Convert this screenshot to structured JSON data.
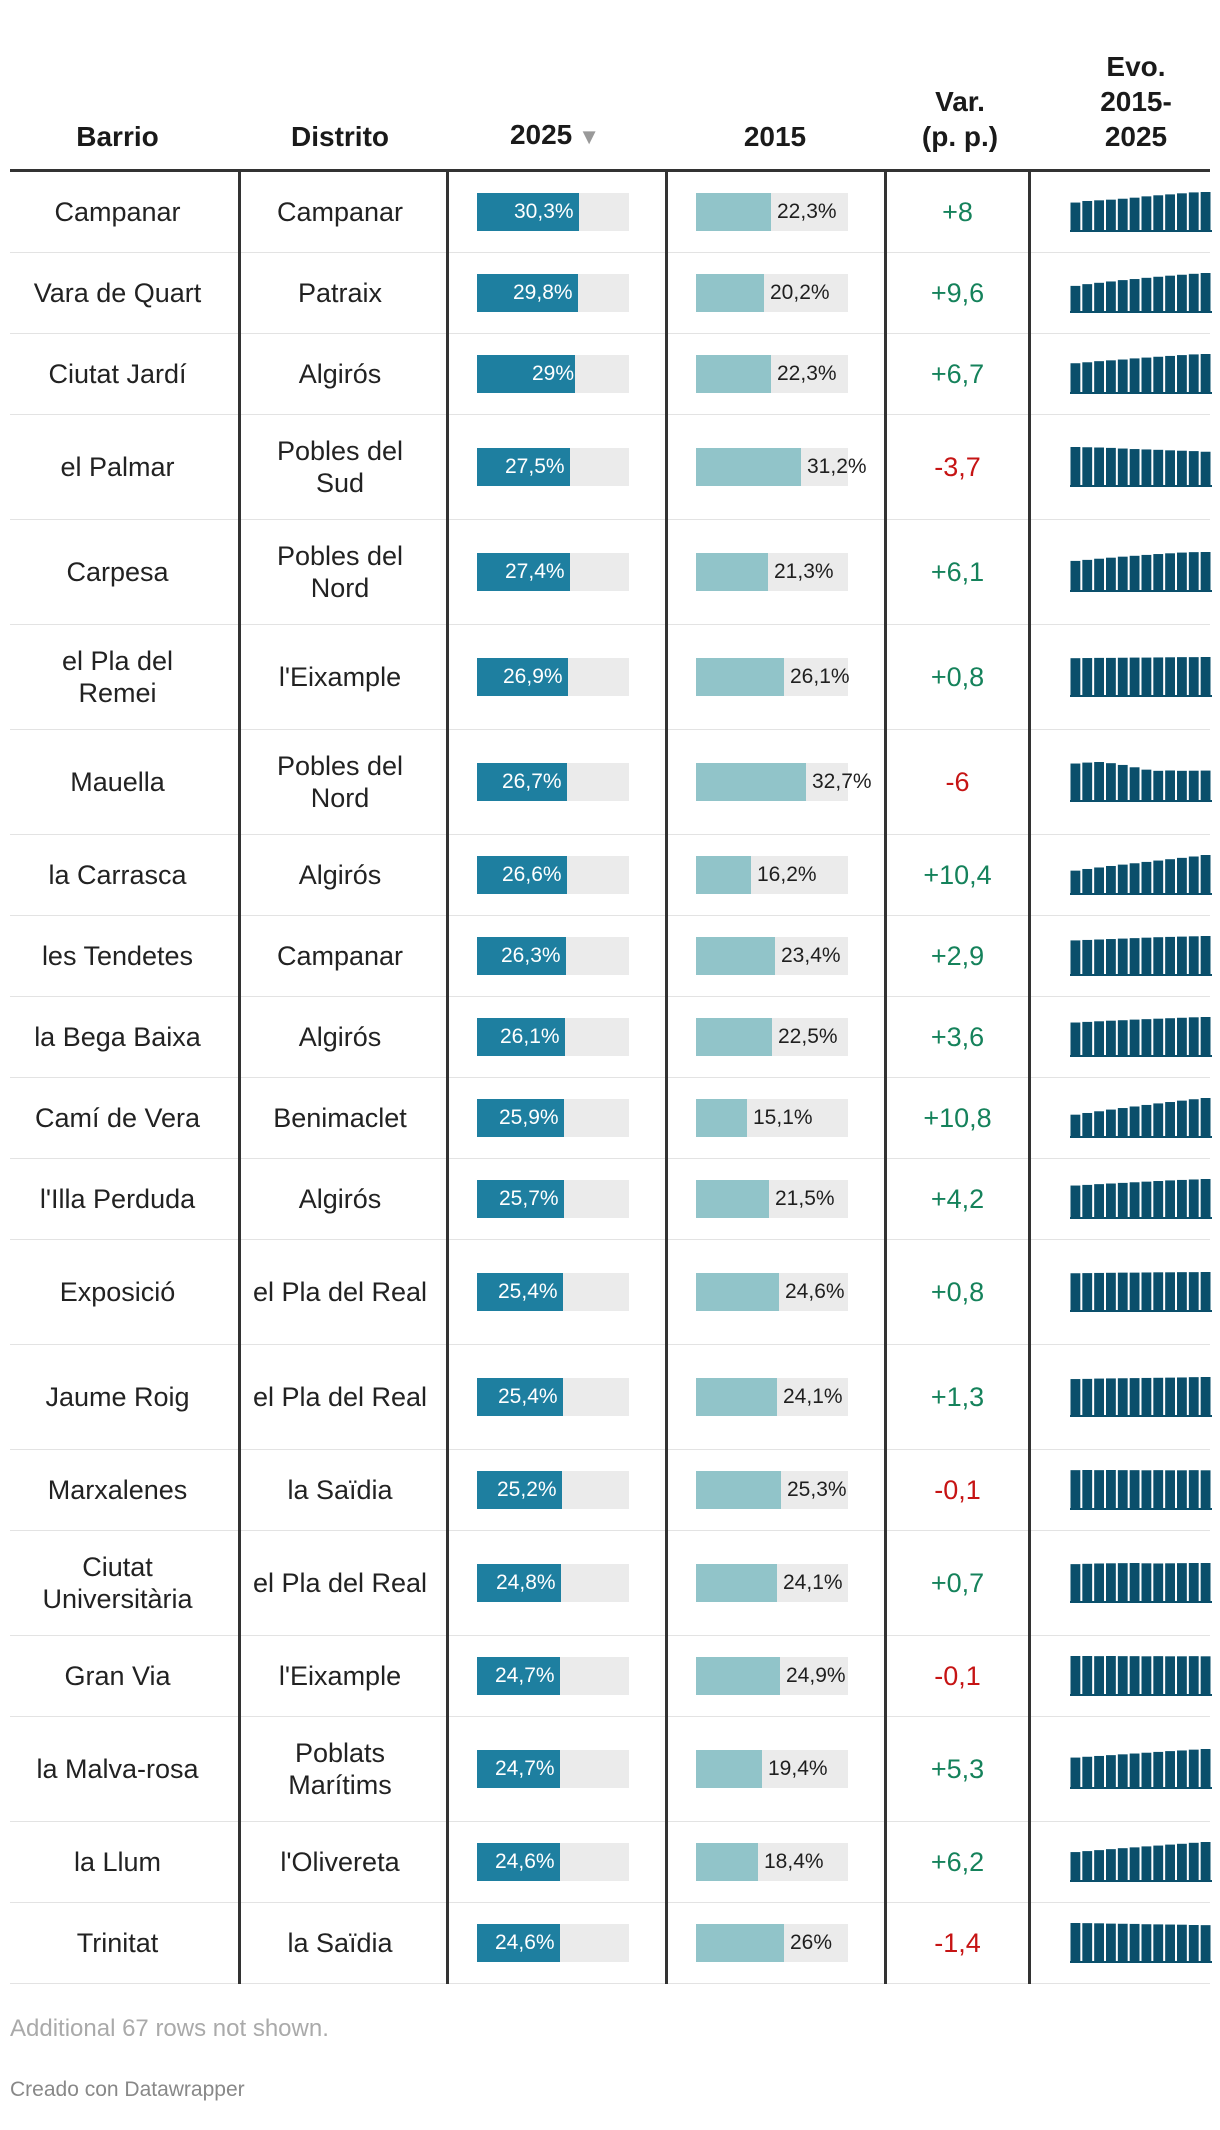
{
  "headers": {
    "barrio": "Barrio",
    "distrito": "Distrito",
    "y2025": "2025",
    "sort_indicator": "▼",
    "y2015": "2015",
    "var": "Var. (p. p.)",
    "evo": "Evo. 2015-2025"
  },
  "colors": {
    "bar_2025": "#1e7fa0",
    "bar_2015": "#91c4c9",
    "bar_bg": "#ebebeb",
    "positive": "#15825b",
    "negative": "#c61414",
    "spark": "#0a4f6b"
  },
  "chart_data": {
    "type": "table",
    "columns": [
      "Barrio",
      "Distrito",
      "2025",
      "2015",
      "Var. (p. p.)",
      "Evo. 2015-2025"
    ],
    "bar_domain": [
      0,
      45
    ],
    "rows": [
      {
        "barrio": "Campanar",
        "distrito": "Campanar",
        "v2025": 30.3,
        "v2025_label": "30,3%",
        "v2015": 22.3,
        "v2015_label": "22,3%",
        "var": "+8",
        "sign": "pos",
        "spark": [
          22.3,
          23.5,
          24.0,
          24.5,
          25.2,
          26.0,
          27.0,
          27.8,
          28.5,
          29.3,
          30.0,
          30.3
        ]
      },
      {
        "barrio": "Vara de Quart",
        "distrito": "Patraix",
        "v2025": 29.8,
        "v2025_label": "29,8%",
        "v2015": 20.2,
        "v2015_label": "20,2%",
        "var": "+9,6",
        "sign": "pos",
        "spark": [
          20.2,
          21.5,
          22.5,
          23.5,
          24.5,
          25.3,
          26.2,
          27.0,
          27.8,
          28.5,
          29.2,
          29.8
        ]
      },
      {
        "barrio": "Ciutat Jardí",
        "distrito": "Algirós",
        "v2025": 29,
        "v2025_label": "29%",
        "v2015": 22.3,
        "v2015_label": "22,3%",
        "var": "+6,7",
        "sign": "pos",
        "spark": [
          22.3,
          23.0,
          23.8,
          24.4,
          25.0,
          25.8,
          26.4,
          27.0,
          27.6,
          28.2,
          28.7,
          29.0
        ]
      },
      {
        "barrio": "el Palmar",
        "distrito": "Pobles del Sud",
        "v2025": 27.5,
        "v2025_label": "27,5%",
        "v2015": 31.2,
        "v2015_label": "31,2%",
        "var": "-3,7",
        "sign": "neg",
        "spark": [
          31.2,
          31.0,
          30.8,
          30.5,
          30.0,
          29.6,
          29.3,
          29.0,
          28.6,
          28.3,
          28.0,
          27.5
        ]
      },
      {
        "barrio": "Carpesa",
        "distrito": "Pobles del Nord",
        "v2025": 27.4,
        "v2025_label": "27,4%",
        "v2015": 21.3,
        "v2015_label": "21,3%",
        "var": "+6,1",
        "sign": "pos",
        "spark": [
          21.3,
          22.0,
          22.8,
          23.5,
          24.2,
          24.8,
          25.4,
          26.0,
          26.5,
          27.0,
          27.3,
          27.4
        ]
      },
      {
        "barrio": "el Pla del Remei",
        "distrito": "l'Eixample",
        "v2025": 26.9,
        "v2025_label": "26,9%",
        "v2015": 26.1,
        "v2015_label": "26,1%",
        "var": "+0,8",
        "sign": "pos",
        "spark": [
          26.1,
          26.2,
          26.3,
          26.3,
          26.4,
          26.5,
          26.5,
          26.6,
          26.7,
          26.8,
          26.8,
          26.9
        ]
      },
      {
        "barrio": "Mauella",
        "distrito": "Pobles del Nord",
        "v2025": 26.7,
        "v2025_label": "26,7%",
        "v2015": 32.7,
        "v2015_label": "32,7%",
        "var": "-6",
        "sign": "neg",
        "spark": [
          32.7,
          33.5,
          34.0,
          33.0,
          31.5,
          29.5,
          27.5,
          26.5,
          26.8,
          26.5,
          26.6,
          26.7
        ]
      },
      {
        "barrio": "la Carrasca",
        "distrito": "Algirós",
        "v2025": 26.6,
        "v2025_label": "26,6%",
        "v2015": 16.2,
        "v2015_label": "16,2%",
        "var": "+10,4",
        "sign": "pos",
        "spark": [
          16.2,
          17.3,
          18.3,
          19.3,
          20.2,
          21.1,
          22.0,
          22.9,
          23.8,
          24.7,
          25.6,
          26.6
        ]
      },
      {
        "barrio": "les Tendetes",
        "distrito": "Campanar",
        "v2025": 26.3,
        "v2025_label": "26,3%",
        "v2015": 23.4,
        "v2015_label": "23,4%",
        "var": "+2,9",
        "sign": "pos",
        "spark": [
          23.4,
          23.7,
          24.0,
          24.3,
          24.6,
          24.9,
          25.2,
          25.5,
          25.7,
          25.9,
          26.1,
          26.3
        ]
      },
      {
        "barrio": "la Bega Baixa",
        "distrito": "Algirós",
        "v2025": 26.1,
        "v2025_label": "26,1%",
        "v2015": 22.5,
        "v2015_label": "22,5%",
        "var": "+3,6",
        "sign": "pos",
        "spark": [
          22.5,
          22.9,
          23.3,
          23.7,
          24.0,
          24.4,
          24.7,
          25.0,
          25.3,
          25.6,
          25.9,
          26.1
        ]
      },
      {
        "barrio": "Camí de Vera",
        "distrito": "Benimaclet",
        "v2025": 25.9,
        "v2025_label": "25,9%",
        "v2015": 15.1,
        "v2015_label": "15,1%",
        "var": "+10,8",
        "sign": "pos",
        "spark": [
          15.1,
          16.2,
          17.3,
          18.4,
          19.4,
          20.4,
          21.4,
          22.4,
          23.3,
          24.2,
          25.1,
          25.9
        ]
      },
      {
        "barrio": "l'Illa Perduda",
        "distrito": "Algirós",
        "v2025": 25.7,
        "v2025_label": "25,7%",
        "v2015": 21.5,
        "v2015_label": "21,5%",
        "var": "+4,2",
        "sign": "pos",
        "spark": [
          21.5,
          21.9,
          22.4,
          22.8,
          23.2,
          23.6,
          24.0,
          24.4,
          24.8,
          25.1,
          25.4,
          25.7
        ]
      },
      {
        "barrio": "Exposició",
        "distrito": "el Pla del Real",
        "v2025": 25.4,
        "v2025_label": "25,4%",
        "v2015": 24.6,
        "v2015_label": "24,6%",
        "var": "+0,8",
        "sign": "pos",
        "spark": [
          24.6,
          24.7,
          24.8,
          24.9,
          25.0,
          25.0,
          25.1,
          25.2,
          25.2,
          25.3,
          25.3,
          25.4
        ]
      },
      {
        "barrio": "Jaume Roig",
        "distrito": "el Pla del Real",
        "v2025": 25.4,
        "v2025_label": "25,4%",
        "v2015": 24.1,
        "v2015_label": "24,1%",
        "var": "+1,3",
        "sign": "pos",
        "spark": [
          24.1,
          24.2,
          24.4,
          24.5,
          24.6,
          24.7,
          24.8,
          24.9,
          25.0,
          25.1,
          25.3,
          25.4
        ]
      },
      {
        "barrio": "Marxalenes",
        "distrito": "la Saïdia",
        "v2025": 25.2,
        "v2025_label": "25,2%",
        "v2015": 25.3,
        "v2015_label": "25,3%",
        "var": "-0,1",
        "sign": "neg",
        "spark": [
          25.3,
          25.4,
          25.3,
          25.4,
          25.3,
          25.3,
          25.2,
          25.3,
          25.2,
          25.2,
          25.3,
          25.2
        ]
      },
      {
        "barrio": "Ciutat Universitària",
        "distrito": "el Pla del Real",
        "v2025": 24.8,
        "v2025_label": "24,8%",
        "v2015": 24.1,
        "v2015_label": "24,1%",
        "var": "+0,7",
        "sign": "pos",
        "spark": [
          24.1,
          24.3,
          24.5,
          24.6,
          24.7,
          24.8,
          24.6,
          24.5,
          24.6,
          24.7,
          24.8,
          24.8
        ]
      },
      {
        "barrio": "Gran Via",
        "distrito": "l'Eixample",
        "v2025": 24.7,
        "v2025_label": "24,7%",
        "v2015": 24.9,
        "v2015_label": "24,9%",
        "var": "-0,1",
        "sign": "neg",
        "spark": [
          24.9,
          24.9,
          24.8,
          24.9,
          24.8,
          24.8,
          24.7,
          24.8,
          24.7,
          24.7,
          24.8,
          24.7
        ]
      },
      {
        "barrio": "la Malva-rosa",
        "distrito": "Poblats Marítims",
        "v2025": 24.7,
        "v2025_label": "24,7%",
        "v2015": 19.4,
        "v2015_label": "19,4%",
        "var": "+5,3",
        "sign": "pos",
        "spark": [
          19.4,
          19.9,
          20.4,
          20.9,
          21.4,
          21.9,
          22.4,
          22.9,
          23.4,
          23.8,
          24.3,
          24.7
        ]
      },
      {
        "barrio": "la Llum",
        "distrito": "l'Olivereta",
        "v2025": 24.6,
        "v2025_label": "24,6%",
        "v2015": 18.4,
        "v2015_label": "18,4%",
        "var": "+6,2",
        "sign": "pos",
        "spark": [
          18.4,
          19.0,
          19.6,
          20.2,
          20.8,
          21.3,
          21.9,
          22.4,
          23.0,
          23.5,
          24.1,
          24.6
        ]
      },
      {
        "barrio": "Trinitat",
        "distrito": "la Saïdia",
        "v2025": 24.6,
        "v2025_label": "24,6%",
        "v2015": 26,
        "v2015_label": "26%",
        "var": "-1,4",
        "sign": "neg",
        "spark": [
          26.0,
          25.9,
          25.8,
          25.6,
          25.5,
          25.4,
          25.2,
          25.1,
          25.0,
          24.9,
          24.7,
          24.6
        ]
      }
    ]
  },
  "footer": {
    "more_rows": "Additional 67 rows not shown.",
    "credit": "Creado con Datawrapper"
  }
}
